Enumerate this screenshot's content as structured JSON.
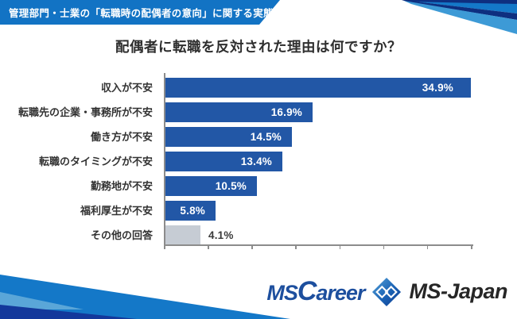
{
  "header": {
    "banner_text": "管理部門・士業の「転職時の配偶者の意向」に関する実態調査",
    "banner_color": "#1273c4"
  },
  "title": "配偶者に転職を反対された理由は何ですか？",
  "chart_data": {
    "type": "bar",
    "orientation": "horizontal",
    "title": "配偶者に転職を反対された理由は何ですか？",
    "categories": [
      "収入が不安",
      "転職先の企業・事務所が不安",
      "働き方が不安",
      "転職のタイミングが不安",
      "勤務地が不安",
      "福利厚生が不安",
      "その他の回答"
    ],
    "values": [
      34.9,
      16.9,
      14.5,
      13.4,
      10.5,
      5.8,
      4.1
    ],
    "rows": [
      {
        "label": "収入が不安",
        "value": 34.9,
        "display": "34.9%",
        "style": "primary",
        "label_pos": "inside"
      },
      {
        "label": "転職先の企業・事務所が不安",
        "value": 16.9,
        "display": "16.9%",
        "style": "primary",
        "label_pos": "inside"
      },
      {
        "label": "働き方が不安",
        "value": 14.5,
        "display": "14.5%",
        "style": "primary",
        "label_pos": "inside"
      },
      {
        "label": "転職のタイミングが不安",
        "value": 13.4,
        "display": "13.4%",
        "style": "primary",
        "label_pos": "inside"
      },
      {
        "label": "勤務地が不安",
        "value": 10.5,
        "display": "10.5%",
        "style": "primary",
        "label_pos": "inside"
      },
      {
        "label": "福利厚生が不安",
        "value": 5.8,
        "display": "5.8%",
        "style": "primary",
        "label_pos": "inside"
      },
      {
        "label": "その他の回答",
        "value": 4.1,
        "display": "4.1%",
        "style": "other",
        "label_pos": "outside"
      }
    ],
    "xlim": [
      0,
      35
    ],
    "xtick_interval": 5,
    "xtick_labels_visible": false,
    "grid": false,
    "legend": false,
    "bar_color": "#2257a6",
    "other_bar_color": "#c6ccd4",
    "value_label_inside_color": "#ffffff",
    "value_label_outside_color": "#3a3a3a"
  },
  "footer": {
    "logo_mscareer": {
      "pre": "MS",
      "big": "C",
      "post": "areer"
    },
    "logo_msjapan": "MS-Japan"
  },
  "colors": {
    "banner_blue": "#1273c4",
    "bar_blue": "#2257a6",
    "other_gray": "#c6ccd4",
    "deco_medium_blue": "#1478c8",
    "deco_navy": "#0e2f80",
    "deco_light_blue": "#3d9ad6",
    "deco_bottom_navy": "#13389b",
    "logo_blue": "#1d4f9e",
    "logo_dark": "#262626"
  }
}
